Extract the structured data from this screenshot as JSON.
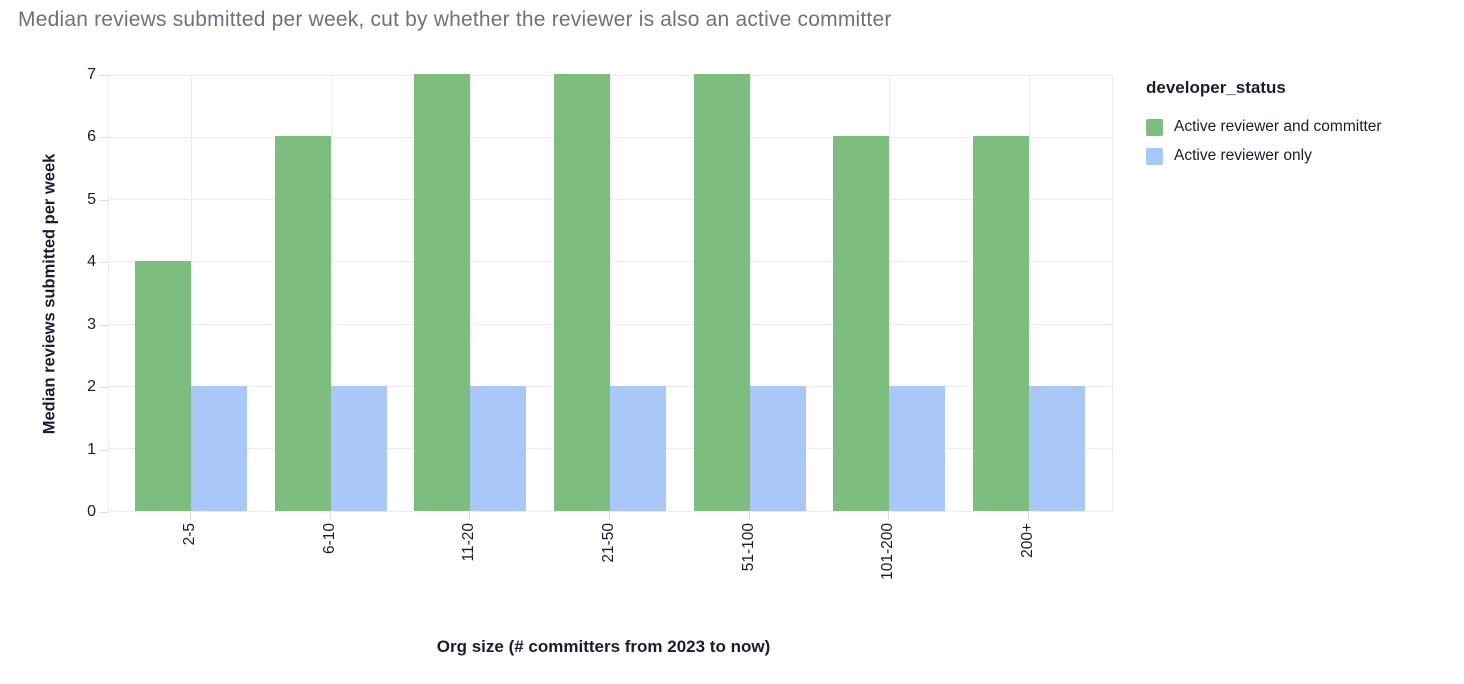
{
  "title": "Median reviews submitted per week, cut by whether the reviewer is also an active committer",
  "legend": {
    "title": "developer_status",
    "position": "right"
  },
  "colors": {
    "series_green": "#7dbd7d",
    "series_blue": "#a9c7f9",
    "grid": "#ebebf2",
    "tick": "#dcdce6",
    "text_dark": "#191d32",
    "title_text": "#6a7188"
  },
  "chart_data": {
    "type": "bar",
    "title": "Median reviews submitted per week, cut by whether the reviewer is also an active committer",
    "categories": [
      "2-5",
      "6-10",
      "11-20",
      "21-50",
      "51-100",
      "101-200",
      "200+"
    ],
    "series": [
      {
        "name": "Active reviewer and committer",
        "color": "#7dbd7d",
        "values": [
          4,
          6,
          7,
          7,
          7,
          6,
          6
        ]
      },
      {
        "name": "Active reviewer only",
        "color": "#a9c7f9",
        "values": [
          2,
          2,
          2,
          2,
          2,
          2,
          2
        ]
      }
    ],
    "xlabel": "Org size (# committers from 2023 to now)",
    "ylabel": "Median reviews submitted per week",
    "ylim": [
      0,
      7
    ],
    "yticks": [
      0,
      1,
      2,
      3,
      4,
      5,
      6,
      7
    ],
    "grid": true,
    "legend_title": "developer_status",
    "legend_position": "right"
  }
}
